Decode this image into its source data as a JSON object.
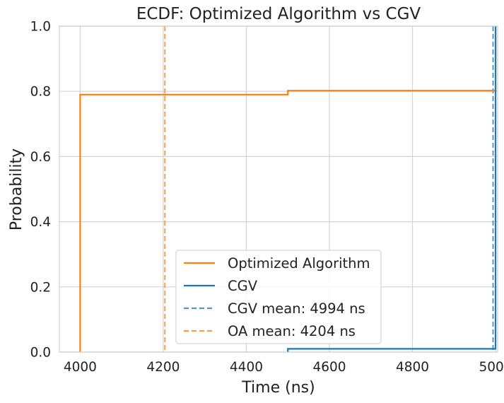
{
  "chart_data": {
    "type": "line",
    "subtype": "ecdf",
    "title": "ECDF: Optimized Algorithm vs CGV",
    "xlabel": "Time (ns)",
    "ylabel": "Probability",
    "xlim": [
      3950,
      5005
    ],
    "ylim": [
      0,
      1
    ],
    "xticks": [
      4000,
      4200,
      4400,
      4600,
      4800,
      5000
    ],
    "xtick_labels": [
      "4000",
      "4200",
      "4400",
      "4600",
      "4800",
      "5000"
    ],
    "yticks": [
      0.0,
      0.2,
      0.4,
      0.6,
      0.8,
      1.0
    ],
    "ytick_labels": [
      "0.0",
      "0.2",
      "0.4",
      "0.6",
      "0.8",
      "1.0"
    ],
    "grid": true,
    "legend_position": "bottom-center",
    "series": [
      {
        "name": "Optimized Algorithm",
        "color": "#ff7f0e",
        "style": "solid",
        "steps": [
          [
            4000,
            0.0
          ],
          [
            4000,
            0.79
          ],
          [
            4500,
            0.79
          ],
          [
            4500,
            0.802
          ],
          [
            5000,
            0.802
          ],
          [
            5000,
            1.0
          ]
        ]
      },
      {
        "name": "CGV",
        "color": "#1f77b4",
        "style": "solid",
        "steps": [
          [
            4500,
            0.0
          ],
          [
            4500,
            0.01
          ],
          [
            5000,
            0.01
          ],
          [
            5000,
            1.0
          ]
        ]
      }
    ],
    "reference_lines": [
      {
        "name": "CGV mean: 4994 ns",
        "x": 4994,
        "color": "#5b96c2",
        "style": "dashed"
      },
      {
        "name": "OA mean: 4204 ns",
        "x": 4204,
        "color": "#f5a04a",
        "style": "dashed"
      }
    ],
    "legend": [
      {
        "label": "Optimized Algorithm",
        "color": "#ff7f0e",
        "style": "solid"
      },
      {
        "label": "CGV",
        "color": "#1f77b4",
        "style": "solid"
      },
      {
        "label": "CGV mean: 4994 ns",
        "color": "#5b96c2",
        "style": "dashed"
      },
      {
        "label": "OA mean: 4204 ns",
        "color": "#f5a04a",
        "style": "dashed"
      }
    ]
  }
}
